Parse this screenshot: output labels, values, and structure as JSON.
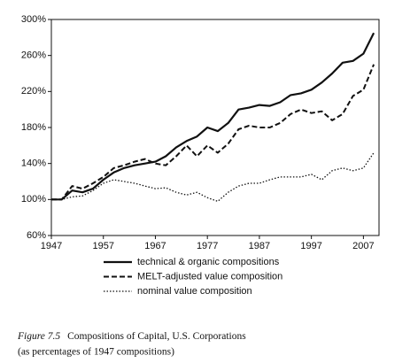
{
  "chart_data": {
    "type": "line",
    "x": [
      1947,
      1949,
      1951,
      1953,
      1955,
      1957,
      1959,
      1961,
      1963,
      1965,
      1967,
      1969,
      1971,
      1973,
      1975,
      1977,
      1979,
      1981,
      1983,
      1985,
      1987,
      1989,
      1991,
      1993,
      1995,
      1997,
      1999,
      2001,
      2003,
      2005,
      2007,
      2009
    ],
    "series": [
      {
        "name": "technical & organic compositions",
        "color": "#111111",
        "style": "solid",
        "values": [
          100,
          100,
          110,
          108,
          112,
          122,
          130,
          135,
          138,
          140,
          142,
          148,
          158,
          165,
          170,
          180,
          176,
          185,
          200,
          202,
          205,
          204,
          208,
          216,
          218,
          222,
          230,
          240,
          252,
          254,
          262,
          285
        ]
      },
      {
        "name": "MELT-adjusted value composition",
        "color": "#111111",
        "style": "dashed",
        "values": [
          100,
          100,
          115,
          112,
          118,
          125,
          135,
          138,
          142,
          145,
          140,
          138,
          148,
          160,
          148,
          160,
          152,
          162,
          178,
          182,
          180,
          180,
          185,
          195,
          200,
          196,
          198,
          188,
          195,
          215,
          222,
          250
        ]
      },
      {
        "name": "nominal value composition",
        "color": "#111111",
        "style": "dotted",
        "values": [
          100,
          100,
          103,
          104,
          110,
          118,
          122,
          120,
          118,
          115,
          112,
          113,
          108,
          105,
          108,
          102,
          98,
          108,
          115,
          118,
          118,
          122,
          125,
          125,
          125,
          128,
          122,
          132,
          135,
          132,
          135,
          152
        ]
      }
    ],
    "xlim": [
      1947,
      2010
    ],
    "xticks": [
      1947,
      1957,
      1967,
      1977,
      1987,
      1997,
      2007
    ],
    "ylim": [
      60,
      300
    ],
    "yticks": [
      {
        "value": 60,
        "label": "60%"
      },
      {
        "value": 100,
        "label": "100%"
      },
      {
        "value": 140,
        "label": "140%"
      },
      {
        "value": 180,
        "label": "180%"
      },
      {
        "value": 220,
        "label": "220%"
      },
      {
        "value": 260,
        "label": "260%"
      },
      {
        "value": 300,
        "label": "300%"
      }
    ],
    "caption": {
      "label": "Figure 7.5",
      "text": "Compositions of Capital, U.S. Corporations",
      "subtext": "(as percentages of 1947 compositions)"
    }
  }
}
